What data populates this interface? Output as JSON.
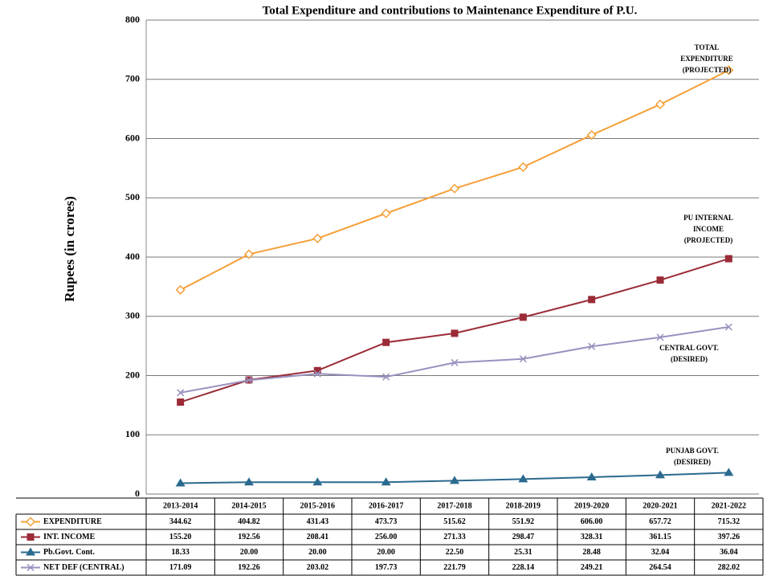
{
  "chart_data": {
    "type": "line",
    "title": "Total Expenditure and contributions to Maintenance Expenditure of P.U.",
    "y_label": "Rupees (in crores)",
    "categories": [
      "2013-2014",
      "2014-2015",
      "2015-2016",
      "2016-2017",
      "2017-2018",
      "2018-2019",
      "2019-2020",
      "2020-2021",
      "2021-2022"
    ],
    "ylim": [
      0,
      800
    ],
    "yticks": [
      0,
      100,
      200,
      300,
      400,
      500,
      600,
      700,
      800
    ],
    "grid": true,
    "series": [
      {
        "name": "EXPENDITURE",
        "color": "#f5a03a",
        "marker": "diamond-open",
        "values": [
          344.62,
          404.82,
          431.43,
          473.73,
          515.62,
          551.92,
          606.0,
          657.72,
          715.32
        ],
        "value_labels": [
          "344.62",
          "404.82",
          "431.43",
          "473.73",
          "515.62",
          "551.92",
          "606.00",
          "657.72",
          "715.32"
        ]
      },
      {
        "name": "INT. INCOME",
        "color": "#9b2b37",
        "marker": "square",
        "values": [
          155.2,
          192.56,
          208.41,
          256.0,
          271.33,
          298.47,
          328.31,
          361.15,
          397.26
        ],
        "value_labels": [
          "155.20",
          "192.56",
          "208.41",
          "256.00",
          "271.33",
          "298.47",
          "328.31",
          "361.15",
          "397.26"
        ]
      },
      {
        "name": "Pb.Govt. Cont.",
        "color": "#2b6a8e",
        "marker": "triangle",
        "values": [
          18.33,
          20.0,
          20.0,
          20.0,
          22.5,
          25.31,
          28.48,
          32.04,
          36.04
        ],
        "value_labels": [
          "18.33",
          "20.00",
          "20.00",
          "20.00",
          "22.50",
          "25.31",
          "28.48",
          "32.04",
          "36.04"
        ]
      },
      {
        "name": "NET DEF (CENTRAL)",
        "color": "#9a90bf",
        "marker": "x",
        "values": [
          171.09,
          192.26,
          203.02,
          197.73,
          221.79,
          228.14,
          249.21,
          264.54,
          282.02
        ],
        "value_labels": [
          "171.09",
          "192.26",
          "203.02",
          "197.73",
          "221.79",
          "228.14",
          "249.21",
          "264.54",
          "282.02"
        ]
      }
    ],
    "annotations": [
      {
        "lines": [
          "TOTAL",
          "EXPENDITURE",
          "(PROJECTED)"
        ]
      },
      {
        "lines": [
          "PU INTERNAL",
          "INCOME",
          "(PROJECTED)"
        ]
      },
      {
        "lines": [
          "CENTRAL GOVT.",
          "(DESIRED)"
        ]
      },
      {
        "lines": [
          "PUNJAB GOVT.",
          "(DESIRED)"
        ]
      }
    ]
  }
}
